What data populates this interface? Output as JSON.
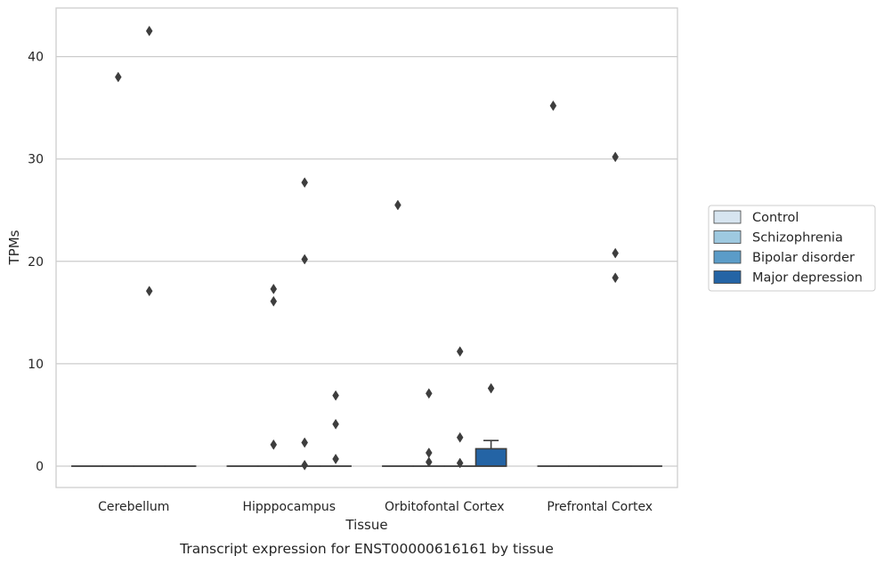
{
  "chart_data": {
    "type": "boxplot",
    "title": "",
    "caption": "Transcript expression for ENST00000616161 by tissue",
    "xlabel": "Tissue",
    "ylabel": "TPMs",
    "ylim": [
      -2,
      44.5
    ],
    "yticks": [
      0,
      10,
      20,
      30,
      40
    ],
    "grid": "horizontal",
    "legend_position": "right",
    "categories": [
      "Cerebellum",
      "Hipppocampus",
      "Orbitofontal Cortex",
      "Prefrontal Cortex"
    ],
    "series": [
      {
        "name": "Control",
        "color": "#d7e5f0",
        "boxes": [
          {
            "category": "Cerebellum",
            "q1": 0,
            "median": 0,
            "q3": 0,
            "whisker_low": 0,
            "whisker_high": 0,
            "outliers": []
          },
          {
            "category": "Hipppocampus",
            "q1": 0,
            "median": 0,
            "q3": 0,
            "whisker_low": 0,
            "whisker_high": 0,
            "outliers": []
          },
          {
            "category": "Orbitofontal Cortex",
            "q1": 0,
            "median": 0,
            "q3": 0,
            "whisker_low": 0,
            "whisker_high": 0,
            "outliers": [
              25.5
            ]
          },
          {
            "category": "Prefrontal Cortex",
            "q1": 0,
            "median": 0,
            "q3": 0,
            "whisker_low": 0,
            "whisker_high": 0,
            "outliers": [
              35.2
            ]
          }
        ]
      },
      {
        "name": "Schizophrenia",
        "color": "#9ec9e0",
        "boxes": [
          {
            "category": "Cerebellum",
            "q1": 0,
            "median": 0,
            "q3": 0,
            "whisker_low": 0,
            "whisker_high": 0,
            "outliers": [
              38.0
            ]
          },
          {
            "category": "Hipppocampus",
            "q1": 0,
            "median": 0,
            "q3": 0,
            "whisker_low": 0,
            "whisker_high": 0,
            "outliers": [
              17.3,
              16.1,
              2.1
            ]
          },
          {
            "category": "Orbitofontal Cortex",
            "q1": 0,
            "median": 0,
            "q3": 0,
            "whisker_low": 0,
            "whisker_high": 0,
            "outliers": [
              7.1,
              1.3,
              0.4
            ]
          },
          {
            "category": "Prefrontal Cortex",
            "q1": 0,
            "median": 0,
            "q3": 0,
            "whisker_low": 0,
            "whisker_high": 0,
            "outliers": []
          }
        ]
      },
      {
        "name": "Bipolar disorder",
        "color": "#5b9cc8",
        "boxes": [
          {
            "category": "Cerebellum",
            "q1": 0,
            "median": 0,
            "q3": 0,
            "whisker_low": 0,
            "whisker_high": 0,
            "outliers": [
              42.5,
              17.1
            ]
          },
          {
            "category": "Hipppocampus",
            "q1": 0,
            "median": 0,
            "q3": 0,
            "whisker_low": 0,
            "whisker_high": 0,
            "outliers": [
              2.3,
              27.7,
              20.2,
              0.1
            ]
          },
          {
            "category": "Orbitofontal Cortex",
            "q1": 0,
            "median": 0,
            "q3": 0,
            "whisker_low": 0,
            "whisker_high": 0,
            "outliers": [
              11.2,
              2.8,
              0.3
            ]
          },
          {
            "category": "Prefrontal Cortex",
            "q1": 0,
            "median": 0,
            "q3": 0,
            "whisker_low": 0,
            "whisker_high": 0,
            "outliers": [
              30.2,
              20.8,
              18.4
            ]
          }
        ]
      },
      {
        "name": "Major depression",
        "color": "#2464a5",
        "boxes": [
          {
            "category": "Cerebellum",
            "q1": 0,
            "median": 0,
            "q3": 0,
            "whisker_low": 0,
            "whisker_high": 0,
            "outliers": []
          },
          {
            "category": "Hipppocampus",
            "q1": 0,
            "median": 0,
            "q3": 0,
            "whisker_low": 0,
            "whisker_high": 0,
            "outliers": [
              6.9,
              4.1,
              0.7
            ]
          },
          {
            "category": "Orbitofontal Cortex",
            "q1": 0,
            "median": 0,
            "q3": 1.7,
            "whisker_low": 0,
            "whisker_high": 2.5,
            "outliers": [
              7.6
            ]
          },
          {
            "category": "Prefrontal Cortex",
            "q1": 0,
            "median": 0,
            "q3": 0,
            "whisker_low": 0,
            "whisker_high": 0,
            "outliers": []
          }
        ]
      }
    ]
  }
}
